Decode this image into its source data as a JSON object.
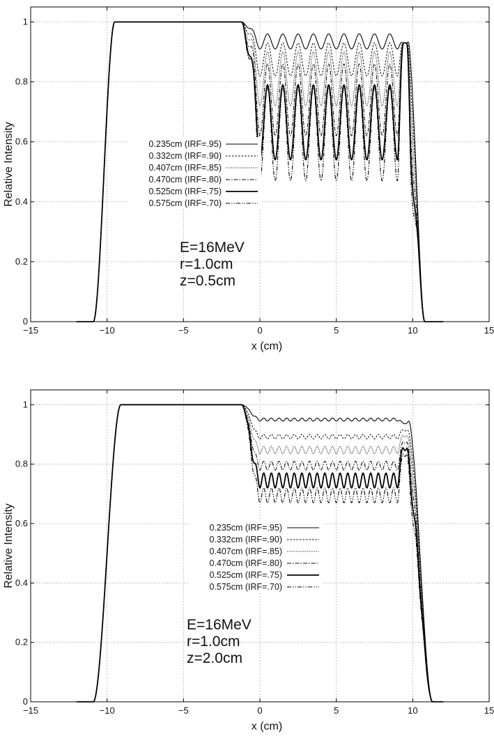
{
  "chart_data": [
    {
      "type": "line",
      "xlabel": "x (cm)",
      "ylabel": "Relative Intensity",
      "xlim": [
        -15,
        15
      ],
      "ylim": [
        0,
        1.05
      ],
      "xticks": [
        "−15",
        "−10",
        "−5",
        "0",
        "5",
        "10",
        "15"
      ],
      "yticks": [
        "0",
        "0.2",
        "0.4",
        "0.6",
        "0.8",
        "1"
      ],
      "xtick_values": [
        -15,
        -10,
        -5,
        0,
        5,
        10,
        15
      ],
      "ytick_values": [
        0,
        0.2,
        0.4,
        0.6,
        0.8,
        1
      ],
      "grid": true,
      "legend_position": "center-left",
      "annotation": [
        "E=16MeV",
        "r=1.0cm",
        "z=0.5cm"
      ],
      "period_cm": 1.0,
      "series": [
        {
          "name": "0.235cm (IRF=.95)",
          "dash": "solid",
          "peak": 0.96,
          "trough": 0.91
        },
        {
          "name": "0.332cm (IRF=.90)",
          "dash": "short",
          "peak": 0.93,
          "trough": 0.82
        },
        {
          "name": "0.407cm (IRF=.85)",
          "dash": "dotted",
          "peak": 0.9,
          "trough": 0.72
        },
        {
          "name": "0.470cm (IRF=.80)",
          "dash": "dashdot",
          "peak": 0.86,
          "trough": 0.62
        },
        {
          "name": "0.525cm (IRF=.75)",
          "dash": "solid-bold",
          "peak": 0.79,
          "trough": 0.54
        },
        {
          "name": "0.575cm (IRF=.70)",
          "dash": "dashdotdot",
          "peak": 0.78,
          "trough": 0.47
        }
      ]
    },
    {
      "type": "line",
      "xlabel": "x (cm)",
      "ylabel": "Relative Intensity",
      "xlim": [
        -15,
        15
      ],
      "ylim": [
        0,
        1.05
      ],
      "xticks": [
        "−15",
        "−10",
        "−5",
        "0",
        "5",
        "10",
        "15"
      ],
      "yticks": [
        "0",
        "0.2",
        "0.4",
        "0.6",
        "0.8",
        "1"
      ],
      "xtick_values": [
        -15,
        -10,
        -5,
        0,
        5,
        10,
        15
      ],
      "ytick_values": [
        0,
        0.2,
        0.4,
        0.6,
        0.8,
        1
      ],
      "grid": true,
      "legend_position": "center",
      "annotation": [
        "E=16MeV",
        "r=1.0cm",
        "z=2.0cm"
      ],
      "period_cm": 0.5,
      "series": [
        {
          "name": "0.235cm (IRF=.95)",
          "dash": "solid",
          "peak": 0.955,
          "trough": 0.945
        },
        {
          "name": "0.332cm (IRF=.90)",
          "dash": "short",
          "peak": 0.9,
          "trough": 0.885
        },
        {
          "name": "0.407cm (IRF=.85)",
          "dash": "dotted",
          "peak": 0.86,
          "trough": 0.835
        },
        {
          "name": "0.470cm (IRF=.80)",
          "dash": "dashdot",
          "peak": 0.81,
          "trough": 0.78
        },
        {
          "name": "0.525cm (IRF=.75)",
          "dash": "solid-bold",
          "peak": 0.77,
          "trough": 0.72
        },
        {
          "name": "0.575cm (IRF=.70)",
          "dash": "dashdotdot",
          "peak": 0.72,
          "trough": 0.67
        }
      ]
    }
  ]
}
